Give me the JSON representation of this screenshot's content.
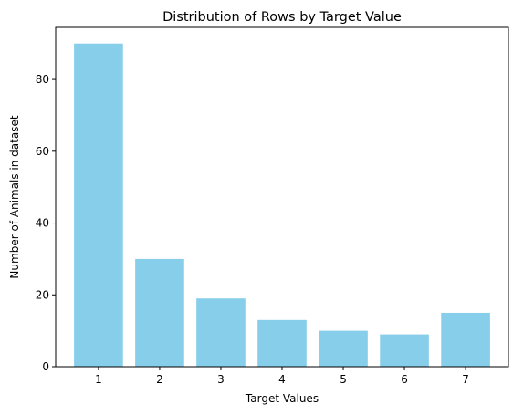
{
  "chart_data": {
    "type": "bar",
    "title": "Distribution of Rows by Target Value",
    "xlabel": "Target Values",
    "ylabel": "Number of Animals in dataset",
    "categories": [
      "1",
      "2",
      "3",
      "4",
      "5",
      "6",
      "7"
    ],
    "values": [
      90,
      30,
      19,
      13,
      10,
      9,
      15
    ],
    "ylim": [
      0,
      94.5
    ],
    "yticks": [
      0,
      20,
      40,
      60,
      80
    ],
    "bar_color": "#87ceeb",
    "grid": false,
    "legend": "none"
  }
}
